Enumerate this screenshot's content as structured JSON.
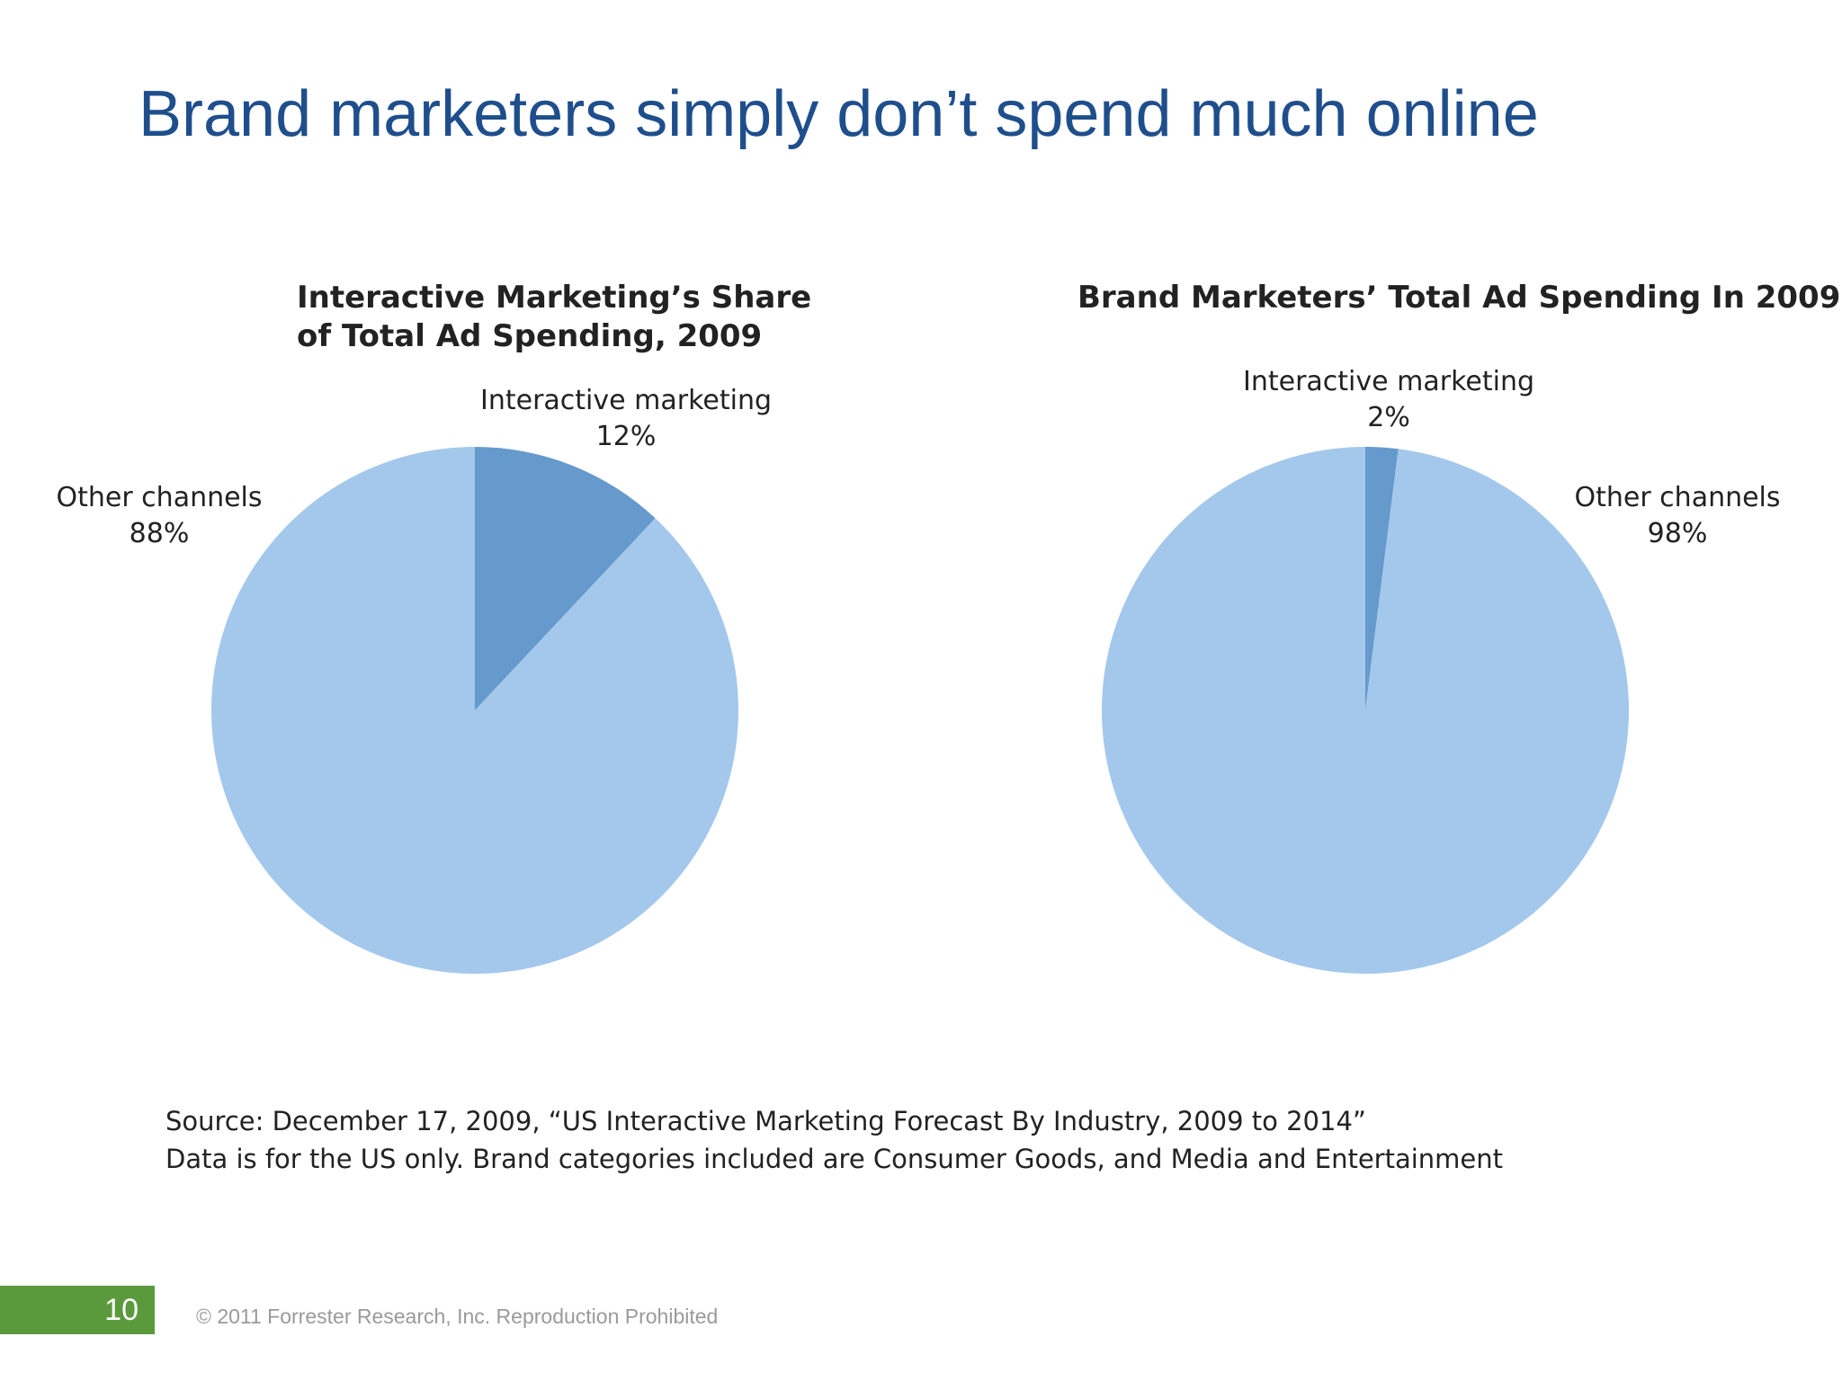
{
  "slide": {
    "title": "Brand marketers simply don’t spend much online",
    "source_line1": "Source: December 17, 2009, “US Interactive Marketing Forecast By Industry, 2009 to 2014”",
    "source_line2": "Data is for the US only. Brand categories included are Consumer Goods, and Media and Entertainment",
    "page_number": "10",
    "copyright": "© 2011 Forrester Research, Inc. Reproduction Prohibited"
  },
  "colors": {
    "title": "#1f4e8c",
    "slice_light": "#a3c8eb",
    "slice_dark": "#6699cc",
    "page_badge": "#5b9a3c"
  },
  "chart_data": [
    {
      "type": "pie",
      "title_line1": "Interactive Marketing’s Share",
      "title_line2": "of Total Ad Spending, 2009",
      "slices": [
        {
          "name": "Interactive marketing",
          "value": 12,
          "label": "12%",
          "color": "#6699cc"
        },
        {
          "name": "Other channels",
          "value": 88,
          "label": "88%",
          "color": "#a3c8eb"
        }
      ]
    },
    {
      "type": "pie",
      "title_line1": "Brand Marketers’ Total Ad Spending In 2009",
      "slices": [
        {
          "name": "Interactive marketing",
          "value": 2,
          "label": "2%",
          "color": "#6699cc"
        },
        {
          "name": "Other channels",
          "value": 98,
          "label": "98%",
          "color": "#a3c8eb"
        }
      ]
    }
  ]
}
